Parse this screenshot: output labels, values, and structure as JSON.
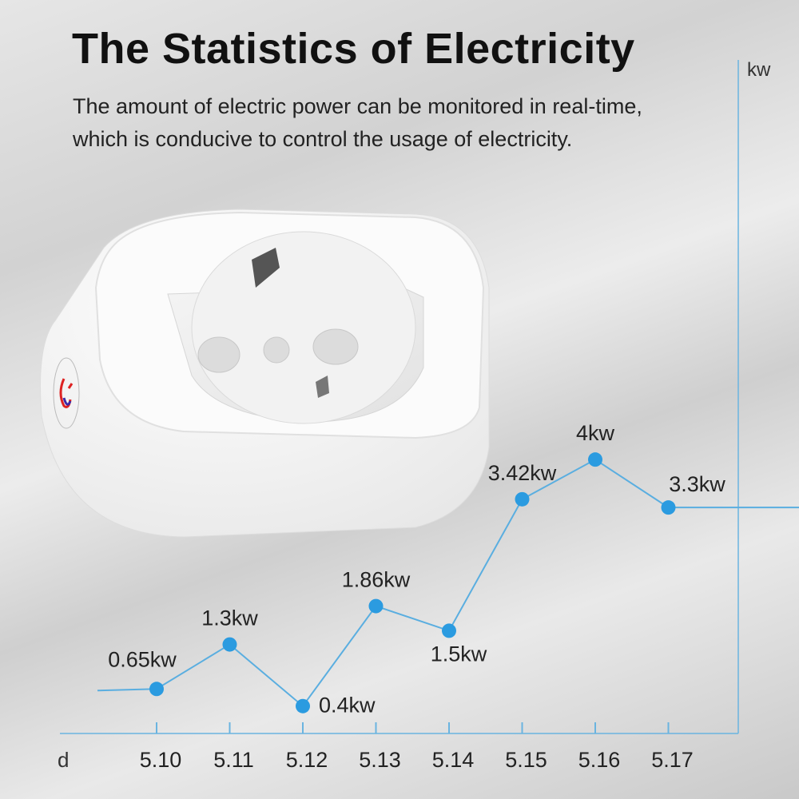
{
  "header": {
    "title": "The Statistics of Electricity",
    "subtitle_lines": [
      "The amount of electric power can be monitored in real-time,",
      "which is conducive to control the usage of electricity."
    ]
  },
  "chart_data": {
    "type": "line",
    "title": "The Statistics of Electricity",
    "xlabel": "d",
    "ylabel": "kw",
    "categories": [
      "5.10",
      "5.11",
      "5.12",
      "5.13",
      "5.14",
      "5.15",
      "5.16",
      "5.17"
    ],
    "values": [
      0.65,
      1.3,
      0.4,
      1.86,
      1.5,
      3.42,
      4,
      3.3
    ],
    "data_labels": [
      "0.65kw",
      "1.3kw",
      "0.4kw",
      "1.86kw",
      "1.5kw",
      "3.42kw",
      "4kw",
      "3.3kw"
    ],
    "ylim": [
      0,
      4.2
    ],
    "grid": false,
    "colors": {
      "line": "#5aaee0",
      "point": "#2b9be0",
      "axis": "#6ab4e0"
    }
  }
}
